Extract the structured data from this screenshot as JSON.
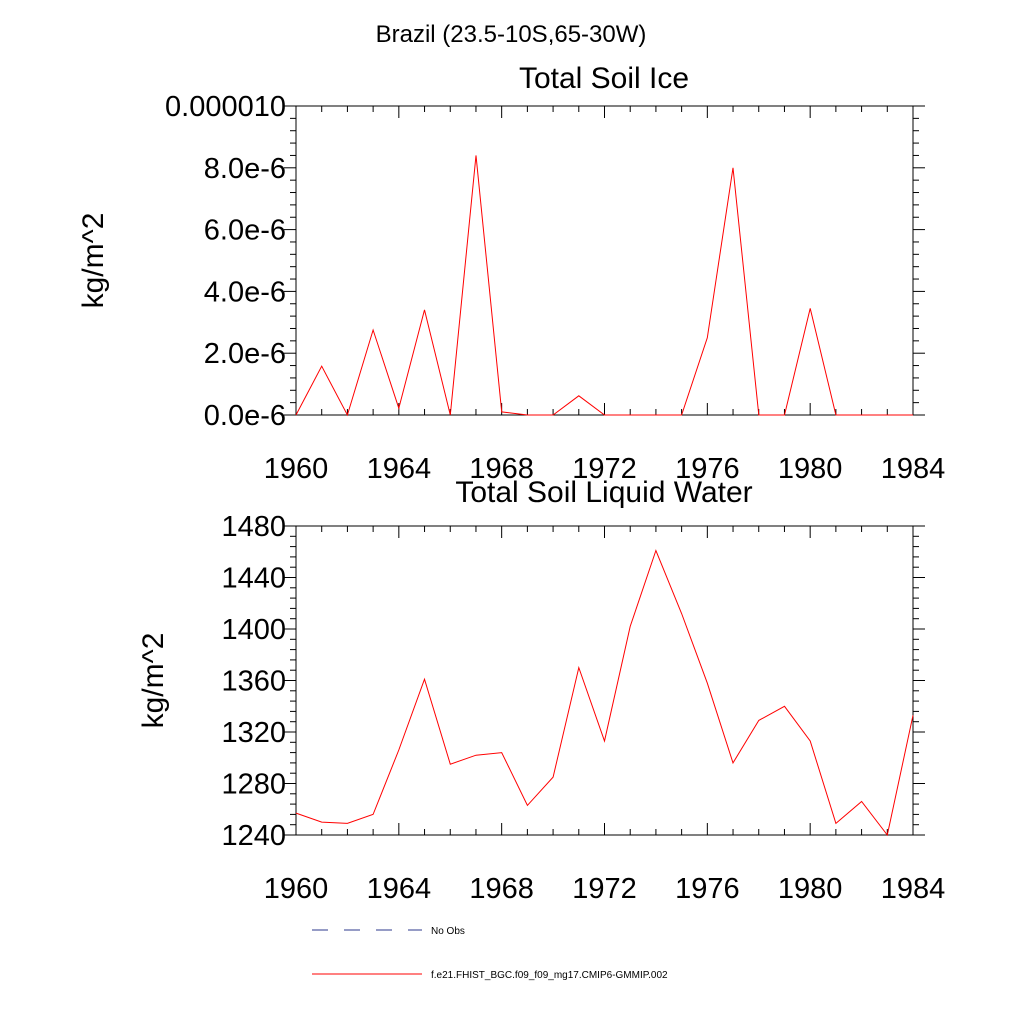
{
  "figure": {
    "title": "Brazil (23.5-10S,65-30W)"
  },
  "colors": {
    "model_line": "#ff0000",
    "obs_line": "#2e3a8c",
    "axis": "#000000"
  },
  "legend": {
    "entries": [
      {
        "label": "No Obs",
        "style": "dashed",
        "color": "#2e3a8c"
      },
      {
        "label": "f.e21.FHIST_BGC.f09_f09_mg17.CMIP6-GMMIP.002",
        "style": "solid",
        "color": "#ff0000"
      }
    ],
    "placement": "bottom"
  },
  "chart_data": [
    {
      "type": "line",
      "title": "Total Soil Ice",
      "xlabel": "",
      "ylabel": "kg/m^2",
      "xlim": [
        1960,
        1984
      ],
      "ylim": [
        0,
        1e-05
      ],
      "xticks": [
        1960,
        1964,
        1968,
        1972,
        1976,
        1980,
        1984
      ],
      "xtick_labels": [
        "1960",
        "1964",
        "1968",
        "1972",
        "1976",
        "1980",
        "1984"
      ],
      "yticks": [
        0,
        2e-06,
        4e-06,
        6e-06,
        8e-06,
        1e-05
      ],
      "ytick_labels": [
        "0.0e-6",
        "2.0e-6",
        "4.0e-6",
        "6.0e-6",
        "8.0e-6",
        "0.000010"
      ],
      "grid": false,
      "series": [
        {
          "name": "f.e21.FHIST_BGC.f09_f09_mg17.CMIP6-GMMIP.002",
          "x": [
            1960,
            1961,
            1962,
            1963,
            1964,
            1965,
            1966,
            1967,
            1968,
            1969,
            1970,
            1971,
            1972,
            1973,
            1974,
            1975,
            1976,
            1977,
            1978,
            1979,
            1980,
            1981,
            1982,
            1983,
            1984
          ],
          "values": [
            0.0,
            1.58e-06,
            0.0,
            2.75e-06,
            2.2e-07,
            3.4e-06,
            0.0,
            8.4e-06,
            1e-07,
            0.0,
            0.0,
            6.2e-07,
            0.0,
            0.0,
            0.0,
            0.0,
            2.5e-06,
            8e-06,
            0.0,
            0.0,
            3.45e-06,
            0.0,
            0.0,
            0.0,
            0.0
          ]
        }
      ]
    },
    {
      "type": "line",
      "title": "Total Soil Liquid Water",
      "xlabel": "",
      "ylabel": "kg/m^2",
      "xlim": [
        1960,
        1984
      ],
      "ylim": [
        1240,
        1480
      ],
      "xticks": [
        1960,
        1964,
        1968,
        1972,
        1976,
        1980,
        1984
      ],
      "xtick_labels": [
        "1960",
        "1964",
        "1968",
        "1972",
        "1976",
        "1980",
        "1984"
      ],
      "yticks": [
        1240,
        1280,
        1320,
        1360,
        1400,
        1440,
        1480
      ],
      "ytick_labels": [
        "1240",
        "1280",
        "1320",
        "1360",
        "1400",
        "1440",
        "1480"
      ],
      "grid": false,
      "series": [
        {
          "name": "f.e21.FHIST_BGC.f09_f09_mg17.CMIP6-GMMIP.002",
          "x": [
            1960,
            1961,
            1962,
            1963,
            1964,
            1965,
            1966,
            1967,
            1968,
            1969,
            1970,
            1971,
            1972,
            1973,
            1974,
            1975,
            1976,
            1977,
            1978,
            1979,
            1980,
            1981,
            1982,
            1983,
            1984
          ],
          "values": [
            1257,
            1250,
            1249,
            1256,
            1306,
            1361,
            1295,
            1302,
            1304,
            1263,
            1285,
            1370,
            1313,
            1402,
            1461,
            1412,
            1358,
            1296,
            1329,
            1340,
            1313,
            1249,
            1266,
            1240,
            1333
          ]
        }
      ]
    }
  ]
}
